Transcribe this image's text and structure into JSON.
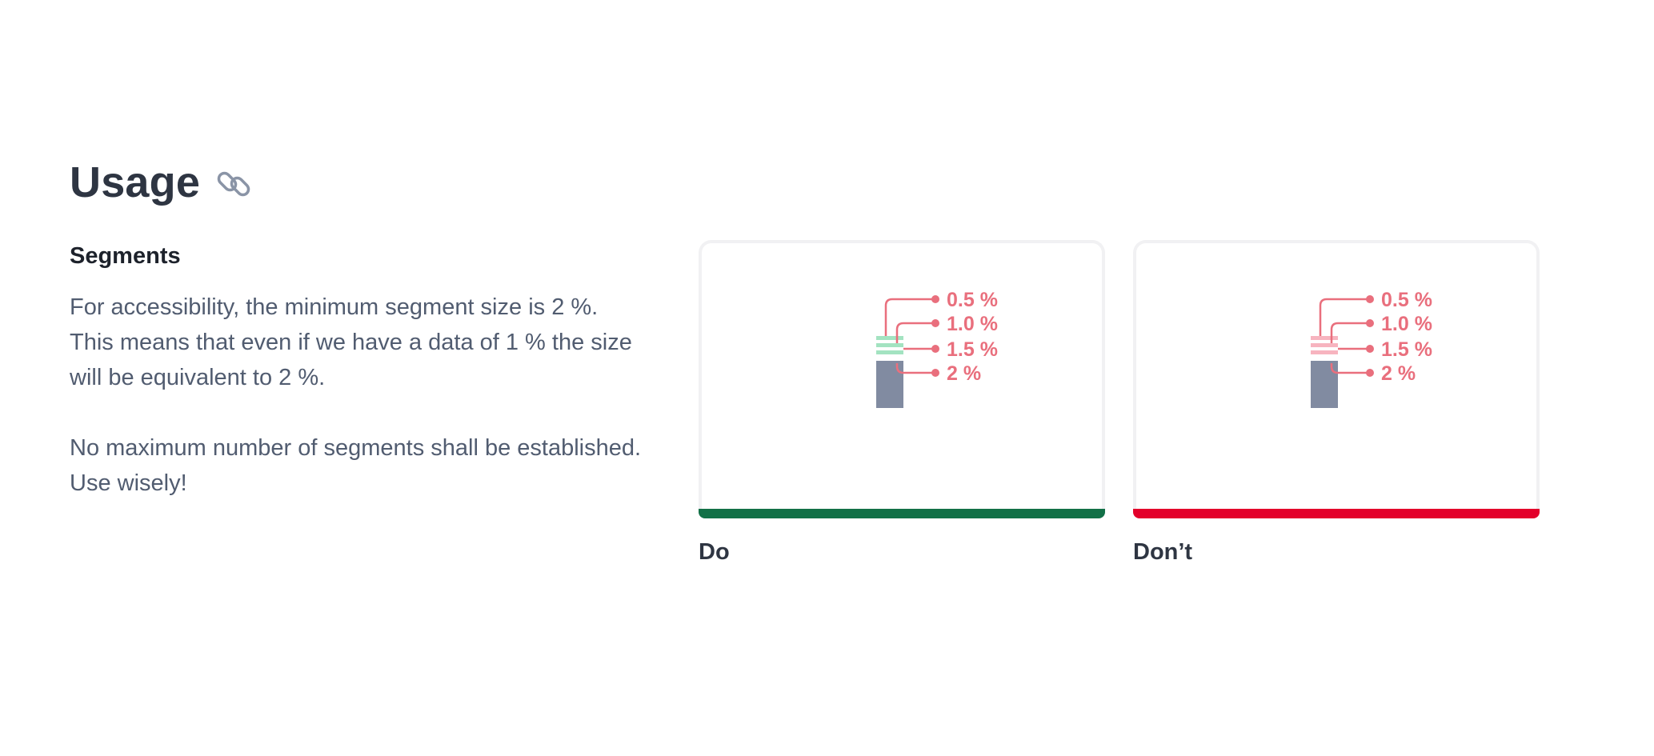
{
  "section": {
    "title": "Usage",
    "link_icon": "link-icon"
  },
  "segments": {
    "heading": "Segments",
    "paragraph_1": "For accessibility, the minimum segment size is 2 %. This means that even if we have a data of 1 % the size will be equivalent to 2 %.",
    "paragraph_2": "No maximum number of segments shall be established. Use wisely!"
  },
  "examples": {
    "labels": [
      "0.5 %",
      "1.0 %",
      "1.5 %",
      "2 %"
    ],
    "label_color": "#e96f7d",
    "base_color": "#818ba1",
    "do": {
      "caption": "Do",
      "segment_color": "#a3e3c1",
      "status_color": "#127047"
    },
    "dont": {
      "caption": "Don’t",
      "segment_color": "#f7b4bf",
      "status_color": "#e3002b"
    }
  }
}
